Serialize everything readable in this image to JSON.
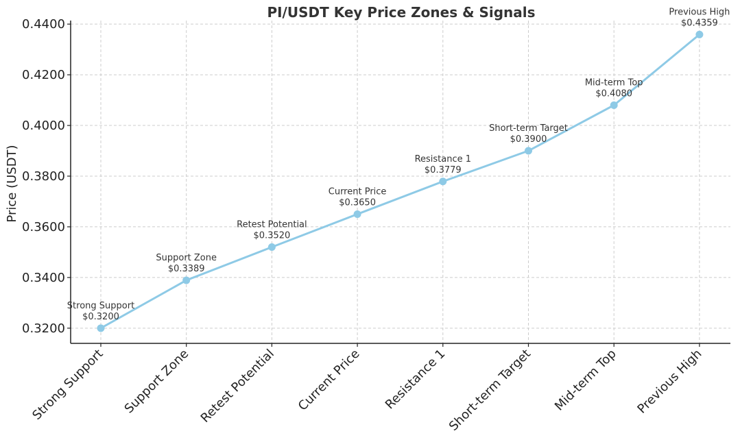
{
  "chart_data": {
    "type": "line",
    "title": "PI/USDT Key Price Zones & Signals",
    "xlabel": "",
    "ylabel": "Price (USDT)",
    "ylim": [
      0.314,
      0.4414
    ],
    "yticks": [
      "0.3200",
      "0.3400",
      "0.3600",
      "0.3800",
      "0.4000",
      "0.4200",
      "0.4400"
    ],
    "ytick_values": [
      0.32,
      0.34,
      0.36,
      0.38,
      0.4,
      0.42,
      0.44
    ],
    "categories": [
      "Strong Support",
      "Support Zone",
      "Retest Potential",
      "Current Price",
      "Resistance 1",
      "Short-term Target",
      "Mid-term Top",
      "Previous High"
    ],
    "values": [
      0.32,
      0.3389,
      0.352,
      0.365,
      0.3779,
      0.39,
      0.408,
      0.4359
    ],
    "annotations": [
      {
        "label": "Strong Support",
        "price": "$0.3200"
      },
      {
        "label": "Support Zone",
        "price": "$0.3389"
      },
      {
        "label": "Retest Potential",
        "price": "$0.3520"
      },
      {
        "label": "Current Price",
        "price": "$0.3650"
      },
      {
        "label": "Resistance 1",
        "price": "$0.3779"
      },
      {
        "label": "Short-term Target",
        "price": "$0.3900"
      },
      {
        "label": "Mid-term Top",
        "price": "$0.4080"
      },
      {
        "label": "Previous High",
        "price": "$0.4359"
      }
    ],
    "grid": true,
    "line_color": "#8ecae6",
    "marker_color": "#8ecae6"
  }
}
